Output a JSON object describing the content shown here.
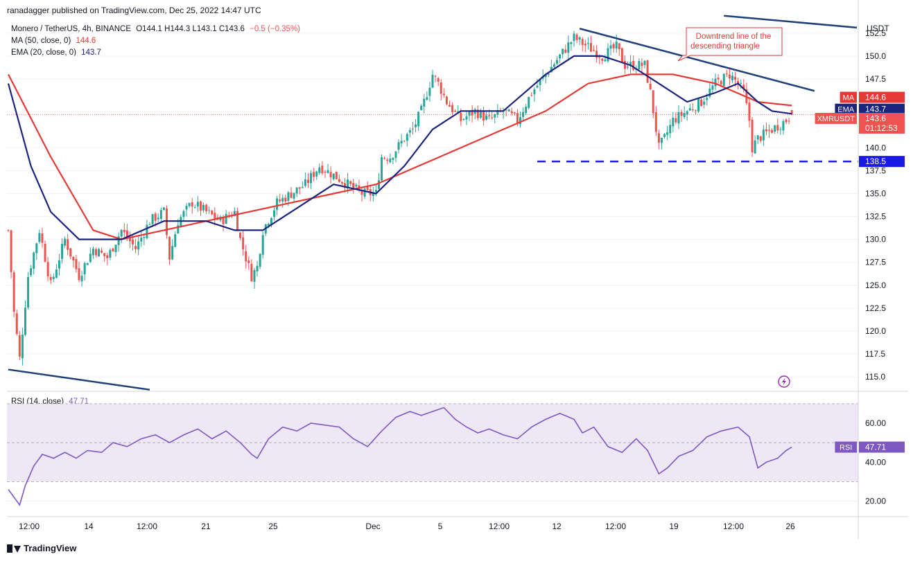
{
  "header": {
    "publish_text": "ranadagger published on TradingView.com, Dec 25, 2022 14:47 UTC"
  },
  "legend": {
    "symbol": "Monero / TetherUS, 4h, BINANCE",
    "o": "O144.1",
    "h": "H144.3",
    "l": "L143.1",
    "c": "C143.6",
    "change": "−0.5 (−0.35%)",
    "ma_label": "MA (50, close, 0)",
    "ma_value": "144.6",
    "ema_label": "EMA (20, close, 0)",
    "ema_value": "143.7",
    "rsi_label": "RSI (14, close)",
    "rsi_value": "47.71"
  },
  "annotation": {
    "text_line1": "Downtrend line of the",
    "text_line2": "descending triangle"
  },
  "footer": {
    "brand": "TradingView"
  },
  "colors": {
    "up": "#26a69a",
    "down": "#ef5350",
    "ma": "#e53935",
    "ema": "#1a237e",
    "trendline": "#1e3f7a",
    "support": "#1a1ae6",
    "rsi_line": "#7e57c2",
    "rsi_band": "#ede7f6"
  },
  "chart_data": [
    {
      "type": "candlestick",
      "title": "Monero / TetherUS, 4h, BINANCE",
      "currency": "USDT",
      "ylim": [
        113.5,
        154
      ],
      "yticks": [
        152.5,
        150.0,
        147.5,
        140.0,
        137.5,
        135.0,
        132.5,
        130.0,
        127.5,
        125.0,
        122.5,
        120.0,
        117.5,
        115.0
      ],
      "ytick_labels": [
        "152.5",
        "150.0",
        "147.5",
        "140.0",
        "137.5",
        "135.0",
        "132.5",
        "130.0",
        "127.5",
        "125.0",
        "122.5",
        "120.0",
        "117.5",
        "115.0"
      ],
      "xtick_labels": [
        "12:00",
        "14",
        "12:00",
        "21",
        "25",
        "Dec",
        "5",
        "12:00",
        "12",
        "12:00",
        "19",
        "12:00",
        "26"
      ],
      "close_path": [
        [
          0,
          131
        ],
        [
          2,
          122
        ],
        [
          4,
          117
        ],
        [
          7,
          126
        ],
        [
          11,
          131
        ],
        [
          15,
          125
        ],
        [
          20,
          130
        ],
        [
          25,
          126
        ],
        [
          30,
          129
        ],
        [
          35,
          128
        ],
        [
          40,
          131
        ],
        [
          45,
          129
        ],
        [
          50,
          132
        ],
        [
          55,
          133
        ],
        [
          57,
          128
        ],
        [
          60,
          132
        ],
        [
          65,
          134
        ],
        [
          70,
          133
        ],
        [
          75,
          132
        ],
        [
          80,
          133
        ],
        [
          82,
          130
        ],
        [
          84,
          128
        ],
        [
          86,
          126
        ],
        [
          88,
          127
        ],
        [
          90,
          131
        ],
        [
          95,
          134
        ],
        [
          100,
          135
        ],
        [
          105,
          136
        ],
        [
          110,
          138
        ],
        [
          115,
          137
        ],
        [
          120,
          136
        ],
        [
          125,
          135
        ],
        [
          130,
          135
        ],
        [
          132,
          139
        ],
        [
          135,
          139
        ],
        [
          140,
          141
        ],
        [
          143,
          142
        ],
        [
          146,
          144
        ],
        [
          150,
          148
        ],
        [
          152,
          147
        ],
        [
          155,
          145
        ],
        [
          160,
          143
        ],
        [
          165,
          144
        ],
        [
          170,
          143
        ],
        [
          175,
          144
        ],
        [
          180,
          143
        ],
        [
          185,
          146
        ],
        [
          190,
          148
        ],
        [
          195,
          150
        ],
        [
          200,
          152
        ],
        [
          205,
          151
        ],
        [
          210,
          150
        ],
        [
          215,
          151
        ],
        [
          218,
          149
        ],
        [
          220,
          149
        ],
        [
          225,
          149
        ],
        [
          227,
          146
        ],
        [
          230,
          140
        ],
        [
          232,
          141
        ],
        [
          235,
          143
        ],
        [
          240,
          144
        ],
        [
          245,
          145
        ],
        [
          250,
          147
        ],
        [
          255,
          148
        ],
        [
          258,
          147
        ],
        [
          260,
          146
        ],
        [
          262,
          143
        ],
        [
          263,
          140
        ],
        [
          265,
          141
        ],
        [
          270,
          142
        ],
        [
          275,
          143
        ],
        [
          277,
          143.6
        ]
      ],
      "ohlc_last": {
        "open": 144.1,
        "high": 144.3,
        "low": 143.1,
        "close": 143.6
      },
      "ma50": {
        "name": "MA",
        "value": 144.6,
        "path": [
          [
            0,
            148
          ],
          [
            15,
            139
          ],
          [
            30,
            131
          ],
          [
            40,
            130
          ],
          [
            55,
            131
          ],
          [
            70,
            132
          ],
          [
            85,
            133
          ],
          [
            100,
            134
          ],
          [
            115,
            135
          ],
          [
            130,
            136
          ],
          [
            145,
            138
          ],
          [
            160,
            140
          ],
          [
            175,
            142
          ],
          [
            190,
            144
          ],
          [
            205,
            147
          ],
          [
            220,
            148
          ],
          [
            235,
            148
          ],
          [
            250,
            147
          ],
          [
            265,
            145
          ],
          [
            277,
            144.6
          ]
        ]
      },
      "ema20": {
        "name": "EMA",
        "value": 143.7,
        "path": [
          [
            0,
            147
          ],
          [
            8,
            138
          ],
          [
            15,
            133
          ],
          [
            25,
            130
          ],
          [
            40,
            130
          ],
          [
            55,
            132
          ],
          [
            70,
            132
          ],
          [
            80,
            131
          ],
          [
            90,
            131
          ],
          [
            100,
            133
          ],
          [
            115,
            136
          ],
          [
            130,
            135
          ],
          [
            140,
            138
          ],
          [
            150,
            142
          ],
          [
            160,
            144
          ],
          [
            175,
            144
          ],
          [
            190,
            148
          ],
          [
            200,
            150
          ],
          [
            210,
            150
          ],
          [
            220,
            149
          ],
          [
            230,
            147
          ],
          [
            240,
            145
          ],
          [
            250,
            146
          ],
          [
            258,
            147
          ],
          [
            265,
            145
          ],
          [
            270,
            144
          ],
          [
            277,
            143.7
          ]
        ]
      },
      "symbol_label": "XMRUSDT",
      "last_price": 143.6,
      "countdown": "01:12:53",
      "support_level": 138.5,
      "support_label": "138.5",
      "axis_tags": [
        {
          "label": "MA",
          "value": "144.6"
        },
        {
          "label": "EMA",
          "value": "143.7"
        },
        {
          "label": "XMRUSDT",
          "value": "143.6"
        }
      ],
      "trendlines": [
        {
          "from": [
            202,
            153.0
          ],
          "to": [
            285,
            146.2
          ]
        },
        {
          "from": [
            253,
            154.4
          ],
          "to": [
            300,
            153.1
          ]
        },
        {
          "from": [
            0,
            115.8
          ],
          "to": [
            50,
            113.6
          ]
        }
      ]
    },
    {
      "type": "line",
      "title": "RSI (14, close)",
      "ylim": [
        12,
        76
      ],
      "yticks": [
        60,
        40,
        20
      ],
      "ytick_labels": [
        "60.00",
        "40.00",
        "20.00"
      ],
      "bands": [
        30,
        50,
        70
      ],
      "series": [
        {
          "name": "RSI",
          "value": 47.71,
          "path": [
            [
              0,
              26
            ],
            [
              2,
              22
            ],
            [
              4,
              18
            ],
            [
              6,
              28
            ],
            [
              9,
              38
            ],
            [
              12,
              44
            ],
            [
              16,
              42
            ],
            [
              20,
              45
            ],
            [
              24,
              42
            ],
            [
              28,
              46
            ],
            [
              33,
              45
            ],
            [
              37,
              50
            ],
            [
              42,
              48
            ],
            [
              47,
              52
            ],
            [
              52,
              54
            ],
            [
              57,
              50
            ],
            [
              62,
              54
            ],
            [
              67,
              57
            ],
            [
              72,
              52
            ],
            [
              77,
              56
            ],
            [
              82,
              50
            ],
            [
              86,
              44
            ],
            [
              88,
              42
            ],
            [
              92,
              52
            ],
            [
              97,
              58
            ],
            [
              102,
              56
            ],
            [
              107,
              60
            ],
            [
              112,
              59
            ],
            [
              117,
              58
            ],
            [
              122,
              52
            ],
            [
              127,
              48
            ],
            [
              132,
              56
            ],
            [
              137,
              63
            ],
            [
              142,
              66
            ],
            [
              146,
              64
            ],
            [
              150,
              66
            ],
            [
              154,
              68
            ],
            [
              158,
              62
            ],
            [
              162,
              58
            ],
            [
              166,
              55
            ],
            [
              170,
              57
            ],
            [
              175,
              54
            ],
            [
              180,
              52
            ],
            [
              185,
              58
            ],
            [
              190,
              62
            ],
            [
              195,
              65
            ],
            [
              200,
              62
            ],
            [
              203,
              55
            ],
            [
              207,
              58
            ],
            [
              212,
              48
            ],
            [
              217,
              45
            ],
            [
              222,
              52
            ],
            [
              226,
              46
            ],
            [
              230,
              34
            ],
            [
              233,
              37
            ],
            [
              237,
              43
            ],
            [
              242,
              46
            ],
            [
              247,
              53
            ],
            [
              252,
              56
            ],
            [
              258,
              58
            ],
            [
              262,
              53
            ],
            [
              265,
              37
            ],
            [
              268,
              40
            ],
            [
              272,
              42
            ],
            [
              275,
              46
            ],
            [
              277,
              47.71
            ]
          ]
        }
      ],
      "last_value": "47.71",
      "axis_tag": "RSI"
    }
  ]
}
